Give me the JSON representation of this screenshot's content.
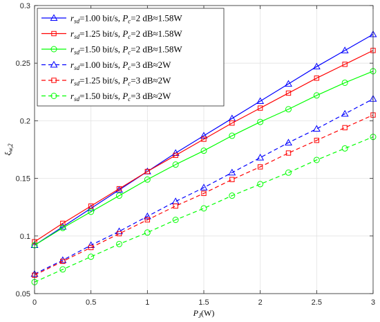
{
  "chart_data": {
    "type": "line",
    "xlabel_main": "P",
    "xlabel_sub": "J",
    "xlabel_unit": "(W)",
    "ylabel_main": "ξ",
    "ylabel_sub": "w,2",
    "xlim": [
      0,
      3
    ],
    "ylim": [
      0.05,
      0.3
    ],
    "grid": true,
    "legend_position": "top-left",
    "x": [
      0,
      0.25,
      0.5,
      0.75,
      1.0,
      1.25,
      1.5,
      1.75,
      2.0,
      2.25,
      2.5,
      2.75,
      3.0
    ],
    "x_ticks": [
      "0",
      "0.5",
      "1",
      "1.5",
      "2",
      "2.5",
      "3"
    ],
    "x_tick_values": [
      0,
      0.5,
      1,
      1.5,
      2,
      2.5,
      3
    ],
    "y_ticks": [
      "0.05",
      "0.1",
      "0.15",
      "0.2",
      "0.25",
      "0.3"
    ],
    "y_tick_values": [
      0.05,
      0.1,
      0.15,
      0.2,
      0.25,
      0.3
    ],
    "series": [
      {
        "name": "r_sd=1.00 bit/s, P_c=2 dB≈1.58W",
        "legend_rate": "=1.00 bit/s, ",
        "legend_power": "=2 dB≈1.58W",
        "color": "#0000ff",
        "marker": "triangle",
        "dashed": false,
        "values": [
          0.092,
          0.108,
          0.124,
          0.14,
          0.156,
          0.172,
          0.187,
          0.202,
          0.217,
          0.232,
          0.247,
          0.261,
          0.275
        ]
      },
      {
        "name": "r_sd=1.25 bit/s, P_c=2 dB≈1.58W",
        "legend_rate": "=1.25 bit/s, ",
        "legend_power": "=2 dB≈1.58W",
        "color": "#ff0000",
        "marker": "square",
        "dashed": false,
        "values": [
          0.095,
          0.111,
          0.126,
          0.141,
          0.156,
          0.17,
          0.184,
          0.198,
          0.211,
          0.224,
          0.237,
          0.249,
          0.261
        ]
      },
      {
        "name": "r_sd=1.50 bit/s, P_c=2 dB≈1.58W",
        "legend_rate": "=1.50 bit/s, ",
        "legend_power": "=2 dB≈1.58W",
        "color": "#00ff00",
        "marker": "circle",
        "dashed": false,
        "values": [
          0.092,
          0.107,
          0.121,
          0.135,
          0.149,
          0.162,
          0.174,
          0.187,
          0.199,
          0.21,
          0.222,
          0.233,
          0.243
        ]
      },
      {
        "name": "r_sd=1.00 bit/s, P_c=3 dB≈2W",
        "legend_rate": "=1.00 bit/s, ",
        "legend_power": "=3 dB≈2W",
        "color": "#0000ff",
        "marker": "triangle",
        "dashed": true,
        "values": [
          0.067,
          0.079,
          0.092,
          0.104,
          0.117,
          0.13,
          0.142,
          0.155,
          0.168,
          0.181,
          0.193,
          0.206,
          0.219
        ]
      },
      {
        "name": "r_sd=1.25 bit/s, P_c=3 dB≈2W",
        "legend_rate": "=1.25 bit/s, ",
        "legend_power": "=3 dB≈2W",
        "color": "#ff0000",
        "marker": "square",
        "dashed": true,
        "values": [
          0.066,
          0.078,
          0.09,
          0.102,
          0.114,
          0.126,
          0.137,
          0.149,
          0.16,
          0.172,
          0.183,
          0.194,
          0.205
        ]
      },
      {
        "name": "r_sd=1.50 bit/s, P_c=3 dB≈2W",
        "legend_rate": "=1.50 bit/s, ",
        "legend_power": "=3 dB≈2W",
        "color": "#00ff00",
        "marker": "circle",
        "dashed": true,
        "values": [
          0.06,
          0.071,
          0.082,
          0.093,
          0.103,
          0.114,
          0.124,
          0.135,
          0.145,
          0.155,
          0.166,
          0.176,
          0.186
        ]
      }
    ]
  }
}
